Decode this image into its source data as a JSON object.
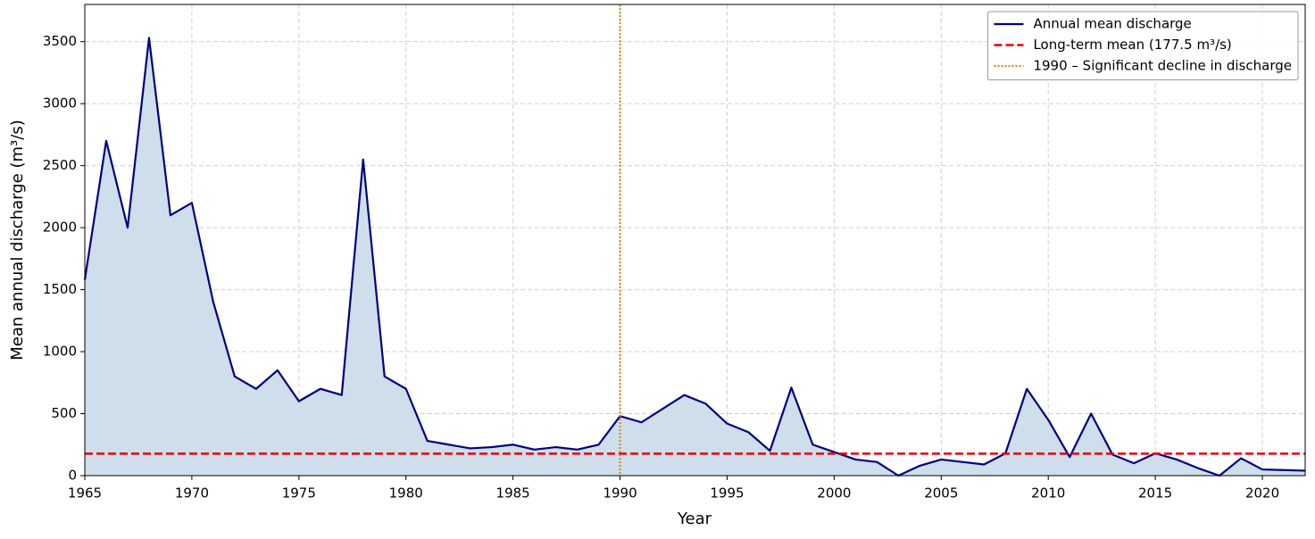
{
  "chart_data": {
    "type": "line",
    "x_label": "Year",
    "y_label": "Mean annual discharge (m³/s)",
    "x": [
      1965,
      1966,
      1967,
      1968,
      1969,
      1970,
      1971,
      1972,
      1973,
      1974,
      1975,
      1976,
      1977,
      1978,
      1979,
      1980,
      1981,
      1982,
      1983,
      1984,
      1985,
      1986,
      1987,
      1988,
      1989,
      1990,
      1991,
      1992,
      1993,
      1994,
      1995,
      1996,
      1997,
      1998,
      1999,
      2000,
      2001,
      2002,
      2003,
      2004,
      2005,
      2006,
      2007,
      2008,
      2009,
      2010,
      2011,
      2012,
      2013,
      2014,
      2015,
      2016,
      2017,
      2018,
      2019,
      2020,
      2021,
      2022
    ],
    "series": [
      {
        "name": "Annual mean discharge",
        "color": "#00007f",
        "fill_color": "#cfdeeb",
        "values": [
          1580,
          2700,
          2000,
          3530,
          2100,
          2200,
          1400,
          800,
          700,
          850,
          600,
          700,
          650,
          2550,
          800,
          700,
          280,
          250,
          220,
          230,
          250,
          210,
          230,
          210,
          250,
          480,
          430,
          540,
          650,
          580,
          420,
          350,
          200,
          710,
          250,
          190,
          130,
          110,
          0,
          80,
          130,
          110,
          90,
          180,
          700,
          450,
          150,
          500,
          170,
          100,
          180,
          130,
          60,
          0,
          140,
          50,
          45,
          40
        ]
      }
    ],
    "hlines": [
      {
        "value": 177.5,
        "label": "Long-term mean (177.5 m³/s)",
        "color": "#e8000b"
      }
    ],
    "vlines": [
      {
        "value": 1990,
        "label": "1990 – Significant decline in discharge",
        "color": "#d4860b"
      }
    ],
    "xlim": [
      1965,
      2022
    ],
    "xticks": [
      1965,
      1970,
      1975,
      1980,
      1985,
      1990,
      1995,
      2000,
      2005,
      2010,
      2015,
      2020
    ],
    "ylim": [
      0,
      3800
    ],
    "yticks": [
      0,
      500,
      1000,
      1500,
      2000,
      2500,
      3000,
      3500
    ],
    "grid": true,
    "legend": "upper right"
  }
}
